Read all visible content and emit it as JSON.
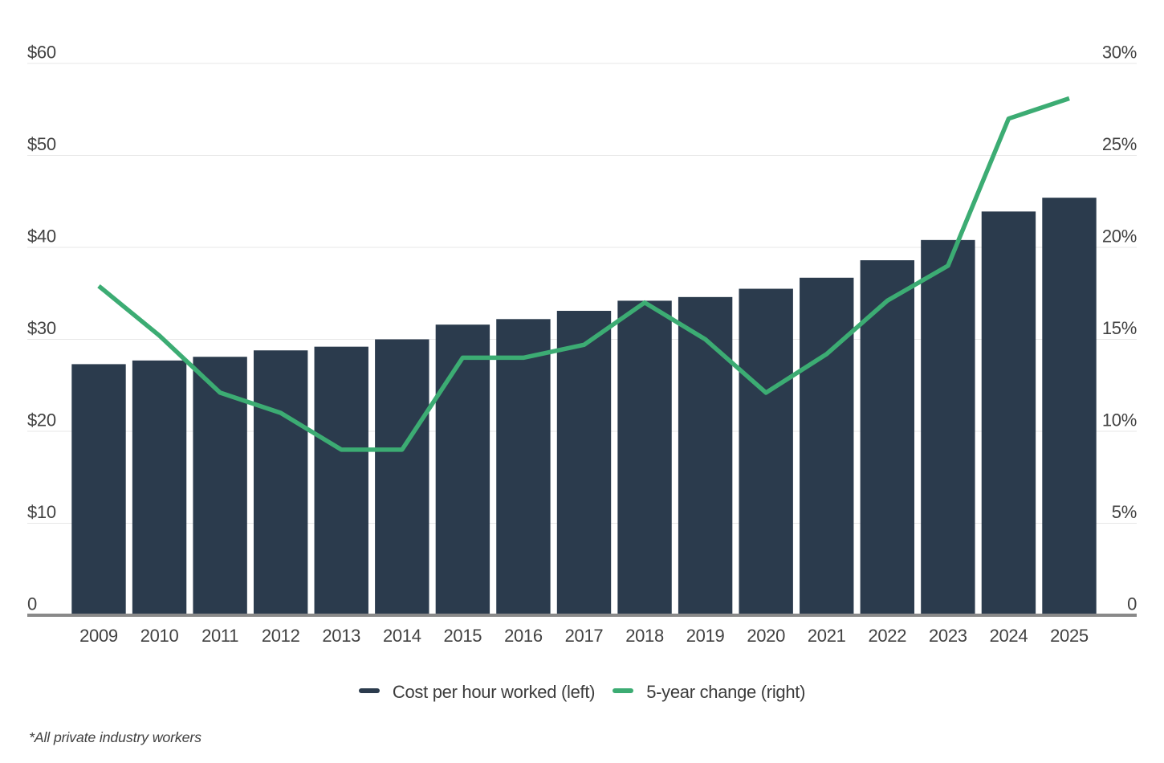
{
  "chart_data": {
    "type": "bar+line combo",
    "categories": [
      "2009",
      "2010",
      "2011",
      "2012",
      "2013",
      "2014",
      "2015",
      "2016",
      "2017",
      "2018",
      "2019",
      "2020",
      "2021",
      "2022",
      "2023",
      "2024",
      "2025"
    ],
    "series": [
      {
        "name": "Cost per hour worked (left)",
        "type": "bar",
        "axis": "left",
        "values": [
          27.3,
          27.7,
          28.1,
          28.8,
          29.2,
          30.0,
          31.6,
          32.2,
          33.1,
          34.2,
          34.6,
          35.5,
          36.7,
          38.6,
          40.8,
          43.9,
          45.4
        ]
      },
      {
        "name": "5-year change (right)",
        "type": "line",
        "axis": "right",
        "values": [
          17.9,
          15.2,
          12.1,
          11.0,
          9.0,
          9.0,
          14.0,
          14.0,
          14.7,
          17.0,
          15.0,
          12.1,
          14.2,
          17.1,
          19.0,
          27.0,
          28.1
        ]
      }
    ],
    "left_axis": {
      "range": [
        0,
        60
      ],
      "ticks": [
        {
          "label": "0",
          "value": 0
        },
        {
          "label": "$10",
          "value": 10
        },
        {
          "label": "$20",
          "value": 20
        },
        {
          "label": "$30",
          "value": 30
        },
        {
          "label": "$40",
          "value": 40
        },
        {
          "label": "$50",
          "value": 50
        },
        {
          "label": "$60",
          "value": 60
        }
      ]
    },
    "right_axis": {
      "range": [
        0,
        30
      ],
      "ticks": [
        {
          "label": "0",
          "value": 0
        },
        {
          "label": "5%",
          "value": 5
        },
        {
          "label": "10%",
          "value": 10
        },
        {
          "label": "15%",
          "value": 15
        },
        {
          "label": "20%",
          "value": 20
        },
        {
          "label": "25%",
          "value": 25
        },
        {
          "label": "30%",
          "value": 30
        }
      ]
    },
    "legend": [
      {
        "label": "Cost per hour worked (left)",
        "swatch": "navy-dash"
      },
      {
        "label": "5-year change (right)",
        "swatch": "green-dash"
      }
    ],
    "footnote": "*All private industry workers",
    "grid": "horizontal",
    "legend_position": "bottom"
  },
  "colors": {
    "bar": "#2b3b4d",
    "line": "#3cac73",
    "grid": "#e7e7e7",
    "axis_line": "#898989",
    "text": "#424242"
  }
}
